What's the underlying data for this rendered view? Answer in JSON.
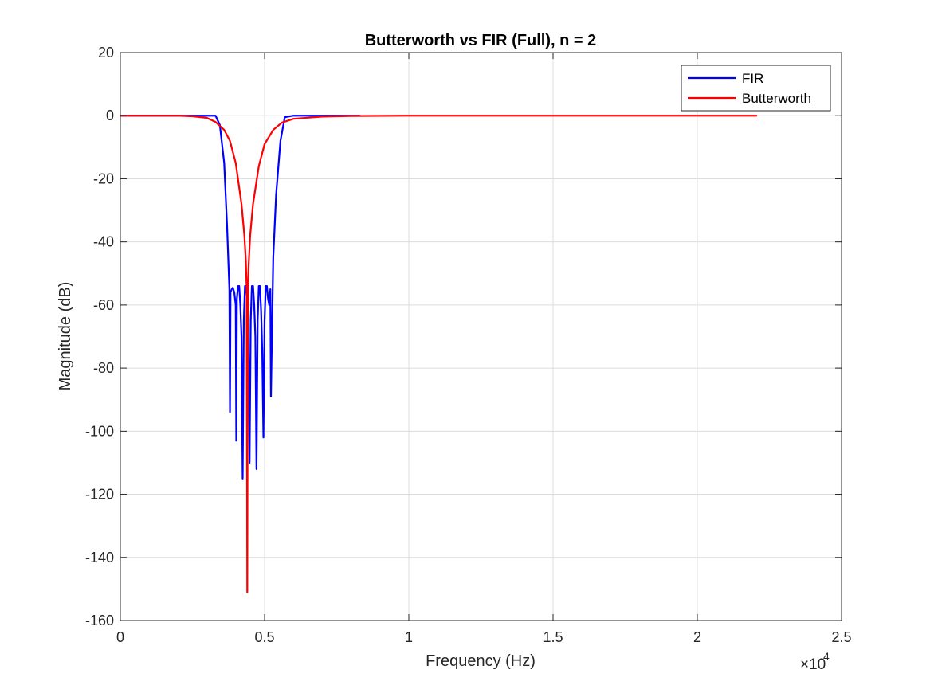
{
  "chart_data": {
    "type": "line",
    "title": "Butterworth vs FIR (Full), n = 2",
    "xlabel": "Frequency (Hz)",
    "ylabel": "Magnitude (dB)",
    "x_exponent_label": "×10",
    "x_exponent_power": "4",
    "xlim": [
      0,
      25000
    ],
    "ylim": [
      -160,
      20
    ],
    "x_ticks": [
      0,
      5000,
      10000,
      15000,
      20000,
      25000
    ],
    "x_tick_labels": [
      "0",
      "0.5",
      "1",
      "1.5",
      "2",
      "2.5"
    ],
    "y_ticks": [
      20,
      0,
      -20,
      -40,
      -60,
      -80,
      -100,
      -120,
      -140,
      -160
    ],
    "y_tick_labels": [
      "20",
      "0",
      "-20",
      "-40",
      "-60",
      "-80",
      "-100",
      "-120",
      "-140",
      "-160"
    ],
    "grid": true,
    "legend_position": "top-right",
    "series": [
      {
        "name": "FIR",
        "color": "#0000ff",
        "x": [
          0,
          3000,
          3300,
          3450,
          3600,
          3700,
          3780,
          3800,
          3820,
          3860,
          3900,
          3950,
          4000,
          4020,
          4040,
          4080,
          4120,
          4160,
          4200,
          4240,
          4280,
          4320,
          4360,
          4400,
          4440,
          4480,
          4520,
          4560,
          4600,
          4640,
          4680,
          4720,
          4760,
          4800,
          4840,
          4880,
          4920,
          4960,
          5000,
          5040,
          5080,
          5120,
          5160,
          5200,
          5220,
          5300,
          5400,
          5550,
          5700,
          6000,
          8300
        ],
        "y": [
          0,
          0,
          0,
          -3,
          -15,
          -35,
          -55,
          -94,
          -56,
          -55,
          -54.5,
          -56,
          -60,
          -103,
          -58,
          -54,
          -54,
          -60,
          -70,
          -115,
          -65,
          -54,
          -54,
          -60,
          -70,
          -110,
          -65,
          -54,
          -54,
          -60,
          -70,
          -112,
          -65,
          -54,
          -54,
          -62,
          -75,
          -102,
          -65,
          -54,
          -54,
          -58,
          -60,
          -55,
          -89,
          -45,
          -25,
          -8,
          -0.5,
          0,
          0
        ]
      },
      {
        "name": "Butterworth",
        "color": "#ff0000",
        "x": [
          0,
          2000,
          2500,
          3000,
          3300,
          3600,
          3800,
          4000,
          4200,
          4300,
          4350,
          4380,
          4400,
          4420,
          4450,
          4500,
          4600,
          4800,
          5000,
          5300,
          5600,
          6000,
          7000,
          8000,
          10000,
          15000,
          22050
        ],
        "y": [
          0,
          0,
          -0.2,
          -0.7,
          -2,
          -4.5,
          -8,
          -15,
          -28,
          -38,
          -46,
          -55,
          -151,
          -55,
          -47,
          -38,
          -28,
          -16,
          -9,
          -4.5,
          -2.2,
          -1,
          -0.3,
          -0.1,
          0,
          0,
          0
        ]
      }
    ]
  }
}
